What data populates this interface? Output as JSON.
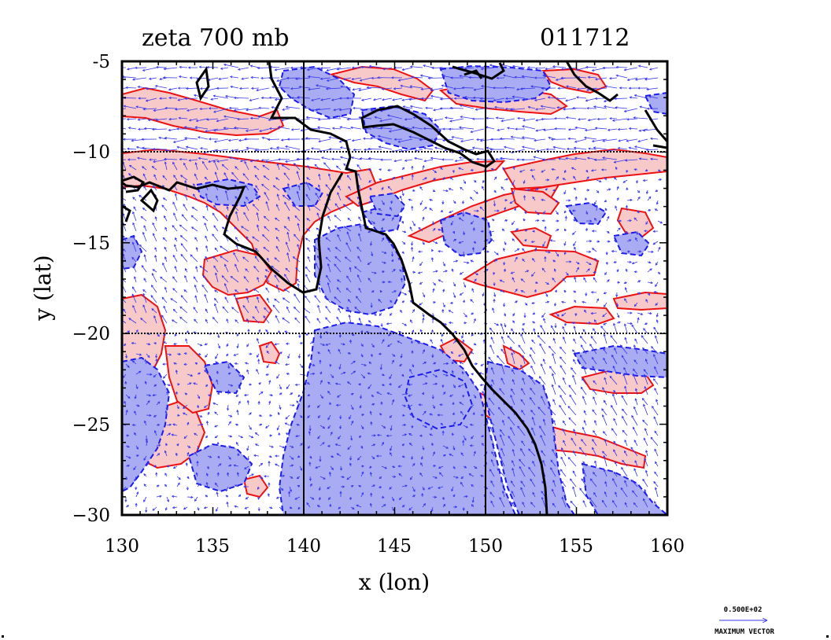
{
  "map": {
    "title_left": "zeta 700 mb",
    "title_right": "011712",
    "xlabel": "x (lon)",
    "ylabel": "y (lat)",
    "x_ticks": [
      "130",
      "135",
      "140",
      "145",
      "150",
      "155",
      "160"
    ],
    "y_ticks": [
      "-5",
      "−10",
      "−15",
      "−20",
      "−25",
      "−30"
    ],
    "x_range": [
      130,
      160
    ],
    "y_range": [
      -30,
      -5
    ],
    "gridlines_lon": [
      140,
      150
    ],
    "gridlines_lat": [
      -10,
      -20
    ],
    "legend": {
      "value": "0.500E+02",
      "label": "MAXIMUM VECTOR"
    },
    "colors": {
      "positive_fill": "#f7c9c9",
      "positive_line": "#ee1111",
      "negative_fill": "#a9acf2",
      "negative_line": "#1a1aee",
      "coastline": "#000000",
      "vectors": "#3434ee"
    }
  }
}
